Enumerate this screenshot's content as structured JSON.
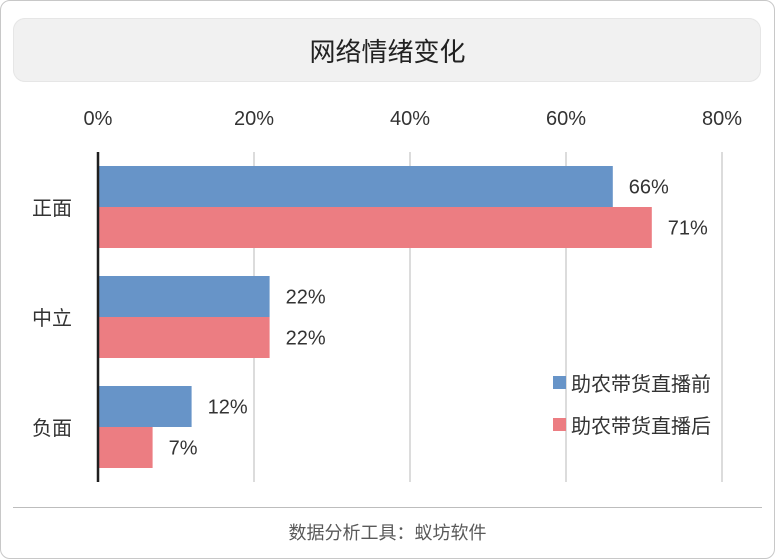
{
  "colors": {
    "series_before": "#6794c8",
    "series_after": "#ec7d82",
    "grid": "#d0d0d0",
    "axis": "#1f1f1f",
    "text": "#333333"
  },
  "footer": {
    "text": "数据分析工具：蚁坊软件"
  },
  "chart_data": {
    "type": "bar",
    "orientation": "horizontal",
    "title": "网络情绪变化",
    "categories": [
      "正面",
      "中立",
      "负面"
    ],
    "series": [
      {
        "name": "助农带货直播前",
        "values": [
          66,
          22,
          12
        ],
        "labels": [
          "66%",
          "22%",
          "12%"
        ]
      },
      {
        "name": "助农带货直播后",
        "values": [
          71,
          22,
          7
        ],
        "labels": [
          "71%",
          "22%",
          "7%"
        ]
      }
    ],
    "x_ticks": [
      0,
      20,
      40,
      60,
      80
    ],
    "x_tick_labels": [
      "0%",
      "20%",
      "40%",
      "60%",
      "80%"
    ],
    "xlim": [
      0,
      80
    ],
    "x_axis_position": "top",
    "grid": true,
    "legend": "right"
  }
}
